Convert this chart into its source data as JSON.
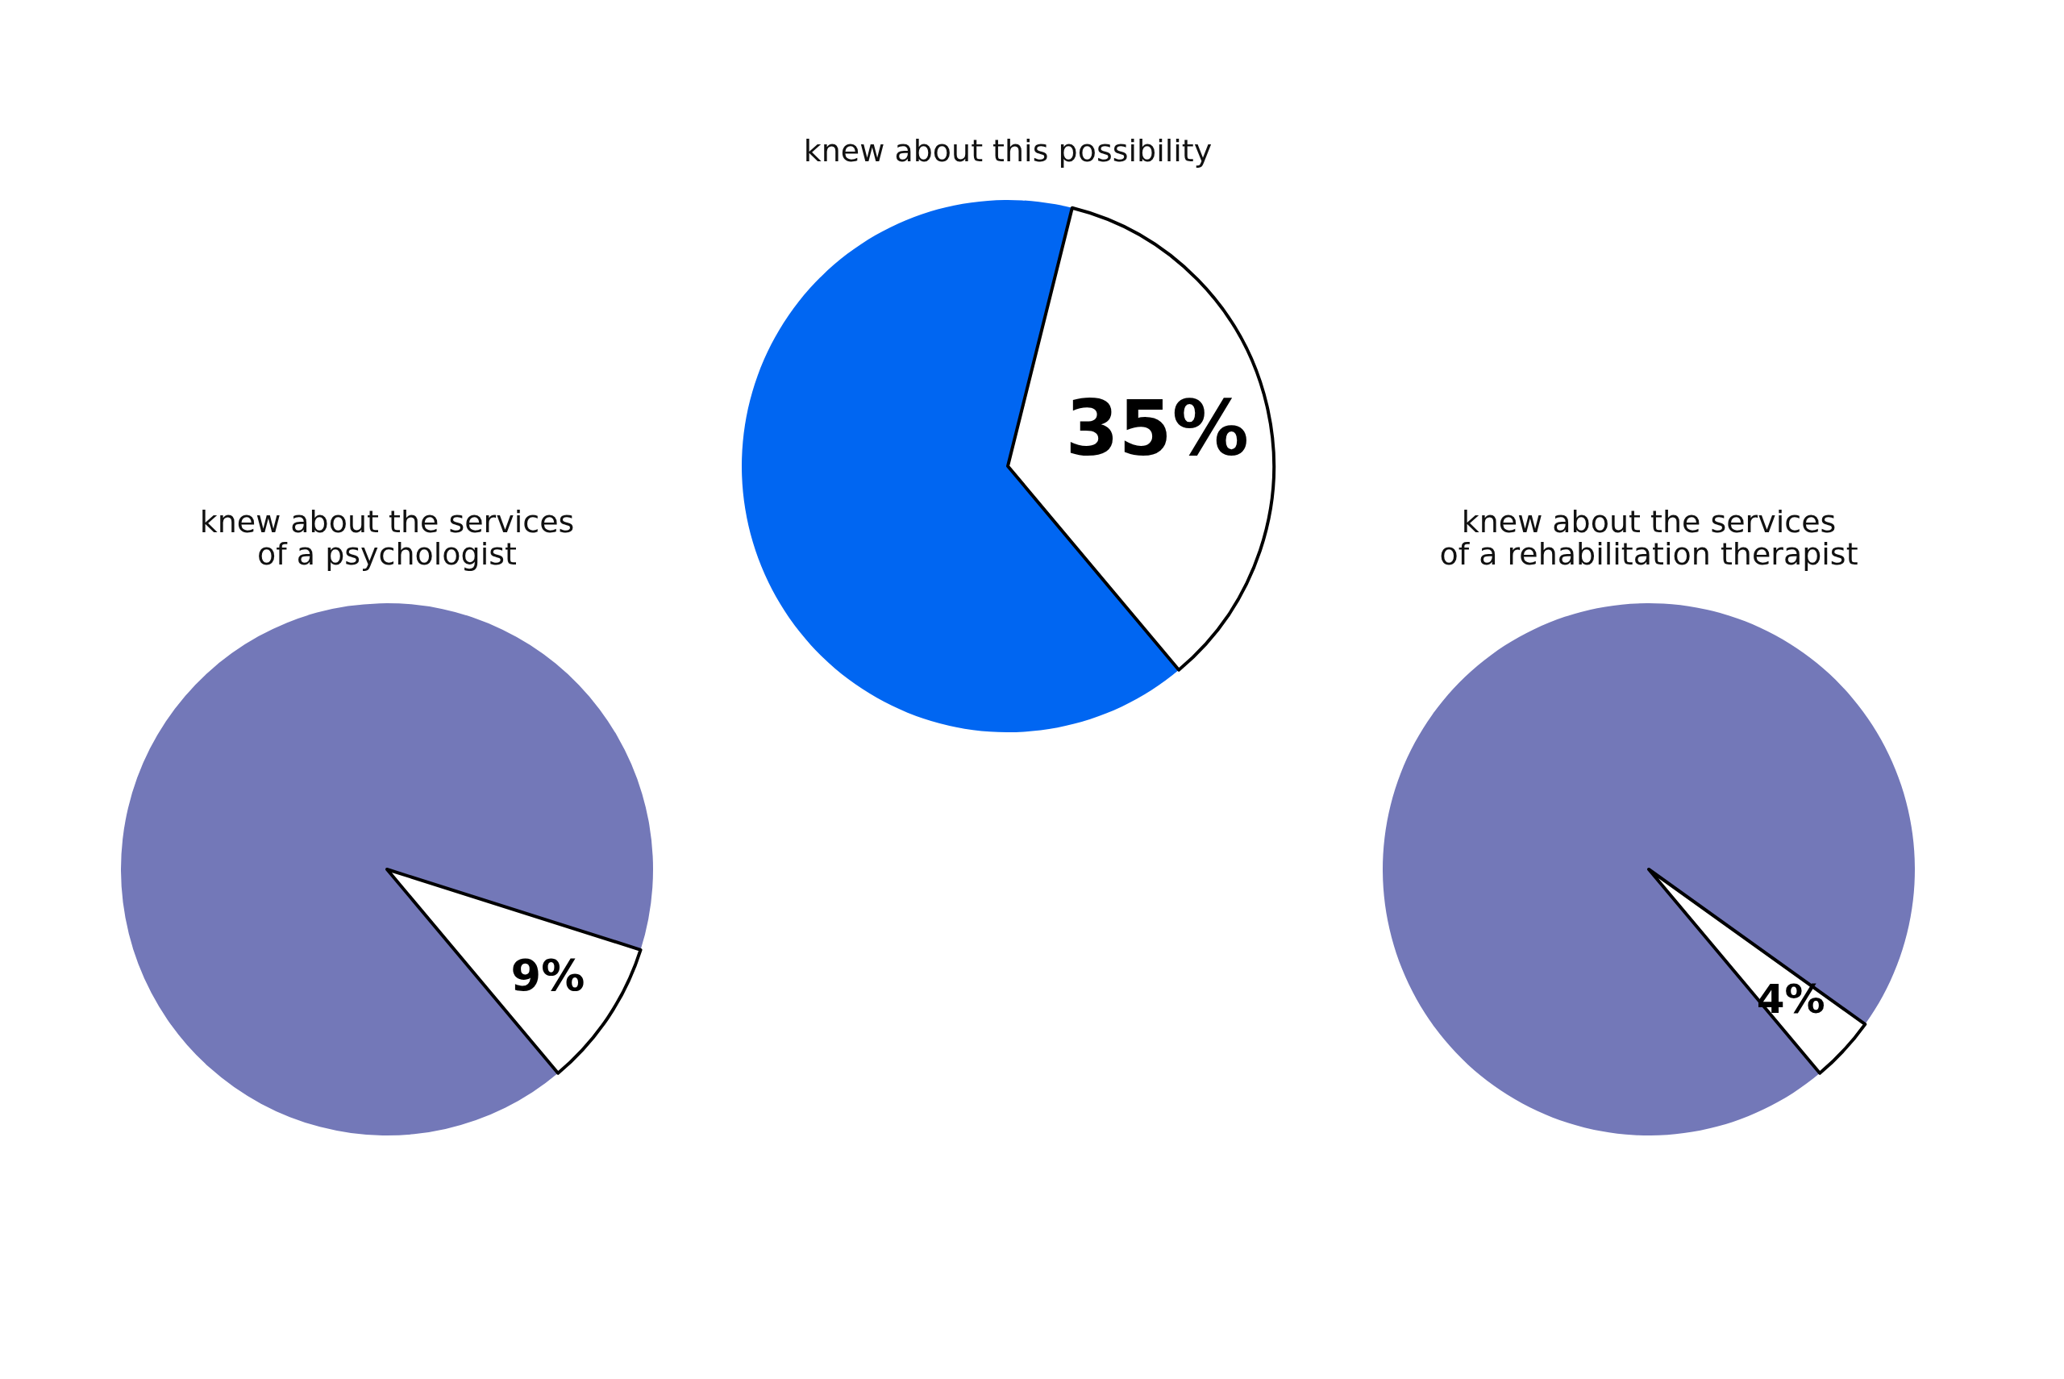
{
  "chart_data": [
    {
      "type": "pie",
      "title": "knew about the services\nof a psychologist",
      "categories": [
        null,
        null
      ],
      "values": [
        91,
        9
      ],
      "colors": [
        "#7378b8",
        "#ffffff"
      ],
      "value_labels": [
        null,
        "9%"
      ]
    },
    {
      "type": "pie",
      "title": "knew about this possibility",
      "categories": [
        null,
        null
      ],
      "values": [
        65,
        35
      ],
      "colors": [
        "#0066f2",
        "#ffffff"
      ],
      "value_labels": [
        null,
        "35%"
      ]
    },
    {
      "type": "pie",
      "title": "knew about the services\nof a rehabilitation therapist",
      "categories": [
        null,
        null
      ],
      "values": [
        96,
        4
      ],
      "colors": [
        "#7378b8",
        "#ffffff"
      ],
      "value_labels": [
        null,
        "4%"
      ]
    }
  ]
}
